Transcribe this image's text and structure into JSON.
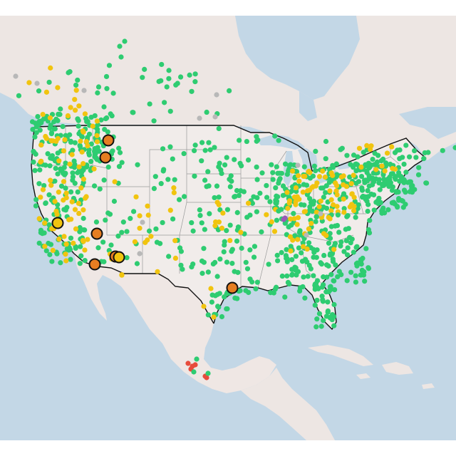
{
  "map": {
    "projection": "lambert-conformal-conic",
    "extent": "contiguous-united-states-with-mexico-and-caribbean",
    "background_style": "light-terrain-basemap",
    "colors": {
      "ocean": "#c3d7e6",
      "land_us": "#f1ecea",
      "land_other": "#ede6e3",
      "mexico": "#efe7e4",
      "border": "#111111",
      "state_lines": "#9a9a9a",
      "lakes": "#c3d7e6"
    },
    "marker_categories": [
      {
        "key": "green",
        "color": "#2ecc71"
      },
      {
        "key": "yellow",
        "color": "#f1c40f"
      },
      {
        "key": "orange_large",
        "color": "#e67e22",
        "outlined": true
      },
      {
        "key": "yellow_large",
        "color": "#f1c40f",
        "outlined": true
      },
      {
        "key": "gray",
        "color": "#b8b8b8"
      },
      {
        "key": "purple",
        "color": "#9b59b6"
      },
      {
        "key": "red",
        "color": "#e74c3c"
      }
    ],
    "markers": {
      "large_orange_count": 8,
      "large_yellow_count": 2
    }
  }
}
